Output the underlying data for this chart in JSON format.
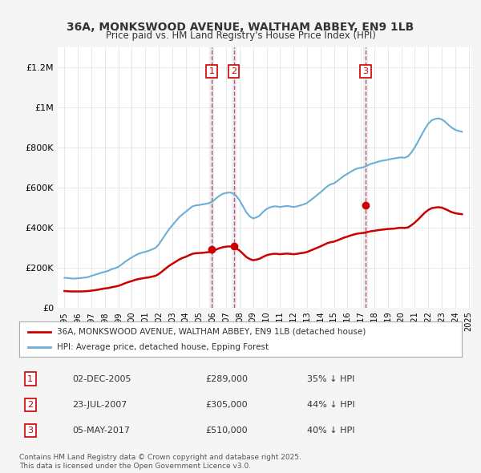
{
  "title": "36A, MONKSWOOD AVENUE, WALTHAM ABBEY, EN9 1LB",
  "subtitle": "Price paid vs. HM Land Registry's House Price Index (HPI)",
  "hpi_color": "#6baed6",
  "price_color": "#cc0000",
  "background_color": "#f5f5f5",
  "plot_bg_color": "#ffffff",
  "ylim": [
    0,
    1300000
  ],
  "yticks": [
    0,
    200000,
    400000,
    600000,
    800000,
    1000000,
    1200000
  ],
  "ytick_labels": [
    "£0",
    "£200K",
    "£400K",
    "£600K",
    "£800K",
    "£1M",
    "£1.2M"
  ],
  "legend_label_price": "36A, MONKSWOOD AVENUE, WALTHAM ABBEY, EN9 1LB (detached house)",
  "legend_label_hpi": "HPI: Average price, detached house, Epping Forest",
  "transactions": [
    {
      "num": 1,
      "date": "2005-12-02",
      "date_label": "02-DEC-2005",
      "price": 289000,
      "pct": "35%",
      "x": 2005.92
    },
    {
      "num": 2,
      "date": "2007-07-23",
      "date_label": "23-JUL-2007",
      "price": 305000,
      "pct": "44%",
      "x": 2007.56
    },
    {
      "num": 3,
      "date": "2017-05-05",
      "date_label": "05-MAY-2017",
      "price": 510000,
      "pct": "40%",
      "x": 2017.34
    }
  ],
  "footer": "Contains HM Land Registry data © Crown copyright and database right 2025.\nThis data is licensed under the Open Government Licence v3.0.",
  "hpi_data": {
    "years": [
      1995.0,
      1995.25,
      1995.5,
      1995.75,
      1996.0,
      1996.25,
      1996.5,
      1996.75,
      1997.0,
      1997.25,
      1997.5,
      1997.75,
      1998.0,
      1998.25,
      1998.5,
      1998.75,
      1999.0,
      1999.25,
      1999.5,
      1999.75,
      2000.0,
      2000.25,
      2000.5,
      2000.75,
      2001.0,
      2001.25,
      2001.5,
      2001.75,
      2002.0,
      2002.25,
      2002.5,
      2002.75,
      2003.0,
      2003.25,
      2003.5,
      2003.75,
      2004.0,
      2004.25,
      2004.5,
      2004.75,
      2005.0,
      2005.25,
      2005.5,
      2005.75,
      2006.0,
      2006.25,
      2006.5,
      2006.75,
      2007.0,
      2007.25,
      2007.5,
      2007.75,
      2008.0,
      2008.25,
      2008.5,
      2008.75,
      2009.0,
      2009.25,
      2009.5,
      2009.75,
      2010.0,
      2010.25,
      2010.5,
      2010.75,
      2011.0,
      2011.25,
      2011.5,
      2011.75,
      2012.0,
      2012.25,
      2012.5,
      2012.75,
      2013.0,
      2013.25,
      2013.5,
      2013.75,
      2014.0,
      2014.25,
      2014.5,
      2014.75,
      2015.0,
      2015.25,
      2015.5,
      2015.75,
      2016.0,
      2016.25,
      2016.5,
      2016.75,
      2017.0,
      2017.25,
      2017.5,
      2017.75,
      2018.0,
      2018.25,
      2018.5,
      2018.75,
      2019.0,
      2019.25,
      2019.5,
      2019.75,
      2020.0,
      2020.25,
      2020.5,
      2020.75,
      2021.0,
      2021.25,
      2021.5,
      2021.75,
      2022.0,
      2022.25,
      2022.5,
      2022.75,
      2023.0,
      2023.25,
      2023.5,
      2023.75,
      2024.0,
      2024.25,
      2024.5
    ],
    "values": [
      148000,
      147000,
      145000,
      144000,
      146000,
      147000,
      149000,
      152000,
      158000,
      163000,
      168000,
      174000,
      178000,
      183000,
      191000,
      196000,
      203000,
      215000,
      228000,
      240000,
      250000,
      260000,
      268000,
      274000,
      278000,
      283000,
      290000,
      297000,
      315000,
      340000,
      365000,
      390000,
      410000,
      430000,
      450000,
      465000,
      478000,
      492000,
      505000,
      510000,
      512000,
      515000,
      518000,
      522000,
      530000,
      545000,
      558000,
      568000,
      572000,
      575000,
      570000,
      558000,
      535000,
      505000,
      475000,
      455000,
      445000,
      450000,
      460000,
      478000,
      492000,
      500000,
      505000,
      505000,
      502000,
      505000,
      507000,
      505000,
      502000,
      505000,
      510000,
      515000,
      522000,
      535000,
      548000,
      562000,
      575000,
      590000,
      605000,
      615000,
      620000,
      632000,
      645000,
      658000,
      668000,
      678000,
      688000,
      695000,
      698000,
      702000,
      710000,
      718000,
      722000,
      728000,
      732000,
      735000,
      738000,
      742000,
      745000,
      748000,
      750000,
      748000,
      755000,
      775000,
      800000,
      830000,
      862000,
      892000,
      918000,
      935000,
      942000,
      945000,
      940000,
      928000,
      912000,
      898000,
      888000,
      882000,
      878000
    ]
  },
  "price_data": {
    "years": [
      1995.0,
      1995.25,
      1995.5,
      1995.75,
      1996.0,
      1996.25,
      1996.5,
      1996.75,
      1997.0,
      1997.25,
      1997.5,
      1997.75,
      1998.0,
      1998.25,
      1998.5,
      1998.75,
      1999.0,
      1999.25,
      1999.5,
      1999.75,
      2000.0,
      2000.25,
      2000.5,
      2000.75,
      2001.0,
      2001.25,
      2001.5,
      2001.75,
      2002.0,
      2002.25,
      2002.5,
      2002.75,
      2003.0,
      2003.25,
      2003.5,
      2003.75,
      2004.0,
      2004.25,
      2004.5,
      2004.75,
      2005.0,
      2005.25,
      2005.5,
      2005.75,
      2006.0,
      2006.25,
      2006.5,
      2006.75,
      2007.0,
      2007.25,
      2007.5,
      2007.75,
      2008.0,
      2008.25,
      2008.5,
      2008.75,
      2009.0,
      2009.25,
      2009.5,
      2009.75,
      2010.0,
      2010.25,
      2010.5,
      2010.75,
      2011.0,
      2011.25,
      2011.5,
      2011.75,
      2012.0,
      2012.25,
      2012.5,
      2012.75,
      2013.0,
      2013.25,
      2013.5,
      2013.75,
      2014.0,
      2014.25,
      2014.5,
      2014.75,
      2015.0,
      2015.25,
      2015.5,
      2015.75,
      2016.0,
      2016.25,
      2016.5,
      2016.75,
      2017.0,
      2017.25,
      2017.5,
      2017.75,
      2018.0,
      2018.25,
      2018.5,
      2018.75,
      2019.0,
      2019.25,
      2019.5,
      2019.75,
      2020.0,
      2020.25,
      2020.5,
      2020.75,
      2021.0,
      2021.25,
      2021.5,
      2021.75,
      2022.0,
      2022.25,
      2022.5,
      2022.75,
      2023.0,
      2023.25,
      2023.5,
      2023.75,
      2024.0,
      2024.25,
      2024.5
    ],
    "values": [
      82000,
      81000,
      80000,
      80000,
      80000,
      80000,
      81000,
      82000,
      84000,
      86000,
      89000,
      92000,
      95000,
      97000,
      101000,
      104000,
      108000,
      114000,
      121000,
      127000,
      132000,
      138000,
      142000,
      145000,
      148000,
      150000,
      154000,
      158000,
      167000,
      180000,
      194000,
      207000,
      218000,
      228000,
      239000,
      247000,
      253000,
      261000,
      268000,
      271000,
      272000,
      273000,
      275000,
      277000,
      281000,
      289000,
      296000,
      301000,
      304000,
      305000,
      302000,
      296000,
      284000,
      268000,
      252000,
      242000,
      236000,
      239000,
      244000,
      253000,
      261000,
      265000,
      268000,
      268000,
      266000,
      268000,
      269000,
      268000,
      266000,
      268000,
      271000,
      273000,
      277000,
      284000,
      291000,
      298000,
      305000,
      313000,
      321000,
      326000,
      329000,
      335000,
      342000,
      349000,
      354000,
      360000,
      365000,
      369000,
      371000,
      373000,
      377000,
      381000,
      383000,
      386000,
      388000,
      390000,
      392000,
      393000,
      394000,
      397000,
      398000,
      397000,
      400000,
      411000,
      424000,
      440000,
      457000,
      474000,
      487000,
      496000,
      499000,
      501000,
      499000,
      492000,
      484000,
      476000,
      471000,
      468000,
      466000
    ]
  }
}
